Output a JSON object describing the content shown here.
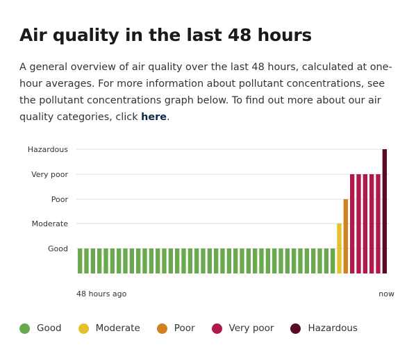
{
  "heading": "Air quality in the last 48 hours",
  "description": {
    "text": "A general overview of air quality over the last 48 hours, calculated at one-hour averages. For more information about pollutant concentrations, see the pollutant concentrations graph below. To find out more about our air quality categories, click ",
    "link_label": "here",
    "end": "."
  },
  "chart_data": {
    "type": "bar",
    "title": "",
    "xlabel": "",
    "ylabel": "",
    "x_tick_labels": [
      "48 hours ago",
      "now"
    ],
    "y_categories": [
      "Good",
      "Moderate",
      "Poor",
      "Very poor",
      "Hazardous"
    ],
    "grid": true,
    "values": [
      "Good",
      "Good",
      "Good",
      "Good",
      "Good",
      "Good",
      "Good",
      "Good",
      "Good",
      "Good",
      "Good",
      "Good",
      "Good",
      "Good",
      "Good",
      "Good",
      "Good",
      "Good",
      "Good",
      "Good",
      "Good",
      "Good",
      "Good",
      "Good",
      "Good",
      "Good",
      "Good",
      "Good",
      "Good",
      "Good",
      "Good",
      "Good",
      "Good",
      "Good",
      "Good",
      "Good",
      "Good",
      "Good",
      "Good",
      "Good",
      "Moderate",
      "Poor",
      "Very poor",
      "Very poor",
      "Very poor",
      "Very poor",
      "Very poor",
      "Hazardous"
    ],
    "colors": {
      "Good": "#6aa84f",
      "Moderate": "#e5c12e",
      "Poor": "#d3801e",
      "Very poor": "#b0194a",
      "Hazardous": "#5a0a22"
    }
  },
  "legend": [
    {
      "label": "Good",
      "color": "#6aa84f"
    },
    {
      "label": "Moderate",
      "color": "#e5c12e"
    },
    {
      "label": "Poor",
      "color": "#d3801e"
    },
    {
      "label": "Very poor",
      "color": "#b0194a"
    },
    {
      "label": "Hazardous",
      "color": "#5a0a22"
    }
  ]
}
